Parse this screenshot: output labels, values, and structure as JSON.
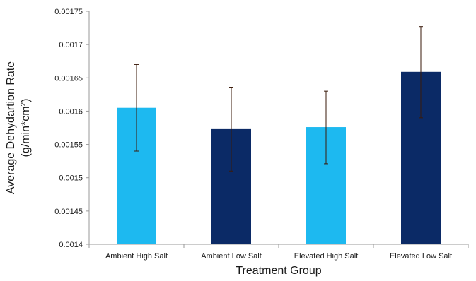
{
  "chart_data": {
    "type": "bar",
    "categories": [
      "Ambient High Salt",
      "Ambient Low Salt",
      "Elevated High Salt",
      "Elevated Low Salt"
    ],
    "values": [
      0.001605,
      0.001573,
      0.001576,
      0.001659
    ],
    "error_high": [
      0.00167,
      0.001636,
      0.00163,
      0.001727
    ],
    "error_low": [
      0.00154,
      0.00151,
      0.001521,
      0.00159
    ],
    "bar_colors": [
      "#1db9f0",
      "#0b2a66",
      "#1db9f0",
      "#0b2a66"
    ],
    "error_bar_color": "#3a1a0a",
    "xlabel": "Treatment Group",
    "ylabel_line1": "Average Dehydartion Rate",
    "ylabel_line2_prefix": "(g/min*cm",
    "ylabel_line2_sup": "2",
    "ylabel_line2_suffix": ")",
    "ylim": [
      0.0014,
      0.00175
    ],
    "yticks": [
      0.0014,
      0.00145,
      0.0015,
      0.00155,
      0.0016,
      0.00165,
      0.0017,
      0.00175
    ],
    "ytick_labels": [
      "0.0014",
      "0.00145",
      "0.0015",
      "0.00155",
      "0.0016",
      "0.00165",
      "0.0017",
      "0.00175"
    ],
    "grid": false,
    "legend": "none"
  }
}
